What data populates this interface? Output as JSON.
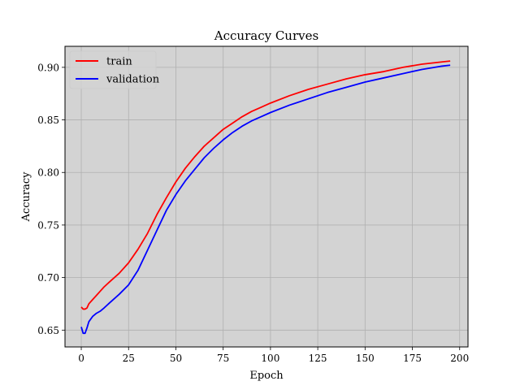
{
  "chart_data": {
    "type": "line",
    "title": "Accuracy Curves",
    "xlabel": "Epoch",
    "ylabel": "Accuracy",
    "xlim": [
      -8.6,
      204.4
    ],
    "ylim": [
      0.634,
      0.92
    ],
    "xticks": [
      0,
      25,
      50,
      75,
      100,
      125,
      150,
      175,
      200
    ],
    "yticks": [
      0.65,
      0.7,
      0.75,
      0.8,
      0.85,
      0.9
    ],
    "ytick_labels": [
      "0.65",
      "0.70",
      "0.75",
      "0.80",
      "0.85",
      "0.90"
    ],
    "grid": true,
    "background": "#d3d3d3",
    "legend": {
      "placement": "upper-left"
    },
    "series": [
      {
        "name": "train",
        "color": "#ff0000",
        "points": [
          [
            0,
            0.672
          ],
          [
            1,
            0.67
          ],
          [
            2,
            0.67
          ],
          [
            3,
            0.671
          ],
          [
            4,
            0.675
          ],
          [
            6,
            0.679
          ],
          [
            8,
            0.683
          ],
          [
            10,
            0.687
          ],
          [
            12,
            0.691
          ],
          [
            15,
            0.696
          ],
          [
            20,
            0.704
          ],
          [
            25,
            0.714
          ],
          [
            30,
            0.727
          ],
          [
            35,
            0.742
          ],
          [
            40,
            0.76
          ],
          [
            45,
            0.776
          ],
          [
            50,
            0.791
          ],
          [
            55,
            0.804
          ],
          [
            60,
            0.815
          ],
          [
            65,
            0.825
          ],
          [
            70,
            0.833
          ],
          [
            75,
            0.841
          ],
          [
            80,
            0.847
          ],
          [
            85,
            0.853
          ],
          [
            90,
            0.858
          ],
          [
            95,
            0.862
          ],
          [
            100,
            0.866
          ],
          [
            110,
            0.873
          ],
          [
            120,
            0.879
          ],
          [
            130,
            0.884
          ],
          [
            140,
            0.889
          ],
          [
            150,
            0.893
          ],
          [
            160,
            0.896
          ],
          [
            170,
            0.9
          ],
          [
            180,
            0.903
          ],
          [
            190,
            0.905
          ],
          [
            195,
            0.906
          ]
        ]
      },
      {
        "name": "validation",
        "color": "#0000ff",
        "points": [
          [
            0,
            0.653
          ],
          [
            1,
            0.647
          ],
          [
            2,
            0.647
          ],
          [
            3,
            0.652
          ],
          [
            4,
            0.658
          ],
          [
            6,
            0.663
          ],
          [
            8,
            0.666
          ],
          [
            10,
            0.668
          ],
          [
            12,
            0.671
          ],
          [
            15,
            0.676
          ],
          [
            20,
            0.684
          ],
          [
            25,
            0.693
          ],
          [
            30,
            0.707
          ],
          [
            35,
            0.726
          ],
          [
            40,
            0.745
          ],
          [
            45,
            0.764
          ],
          [
            50,
            0.779
          ],
          [
            55,
            0.792
          ],
          [
            60,
            0.803
          ],
          [
            65,
            0.814
          ],
          [
            70,
            0.823
          ],
          [
            75,
            0.831
          ],
          [
            80,
            0.838
          ],
          [
            85,
            0.844
          ],
          [
            90,
            0.849
          ],
          [
            95,
            0.853
          ],
          [
            100,
            0.857
          ],
          [
            110,
            0.864
          ],
          [
            120,
            0.87
          ],
          [
            130,
            0.876
          ],
          [
            140,
            0.881
          ],
          [
            150,
            0.886
          ],
          [
            160,
            0.89
          ],
          [
            170,
            0.894
          ],
          [
            180,
            0.898
          ],
          [
            190,
            0.901
          ],
          [
            195,
            0.902
          ]
        ]
      }
    ]
  }
}
